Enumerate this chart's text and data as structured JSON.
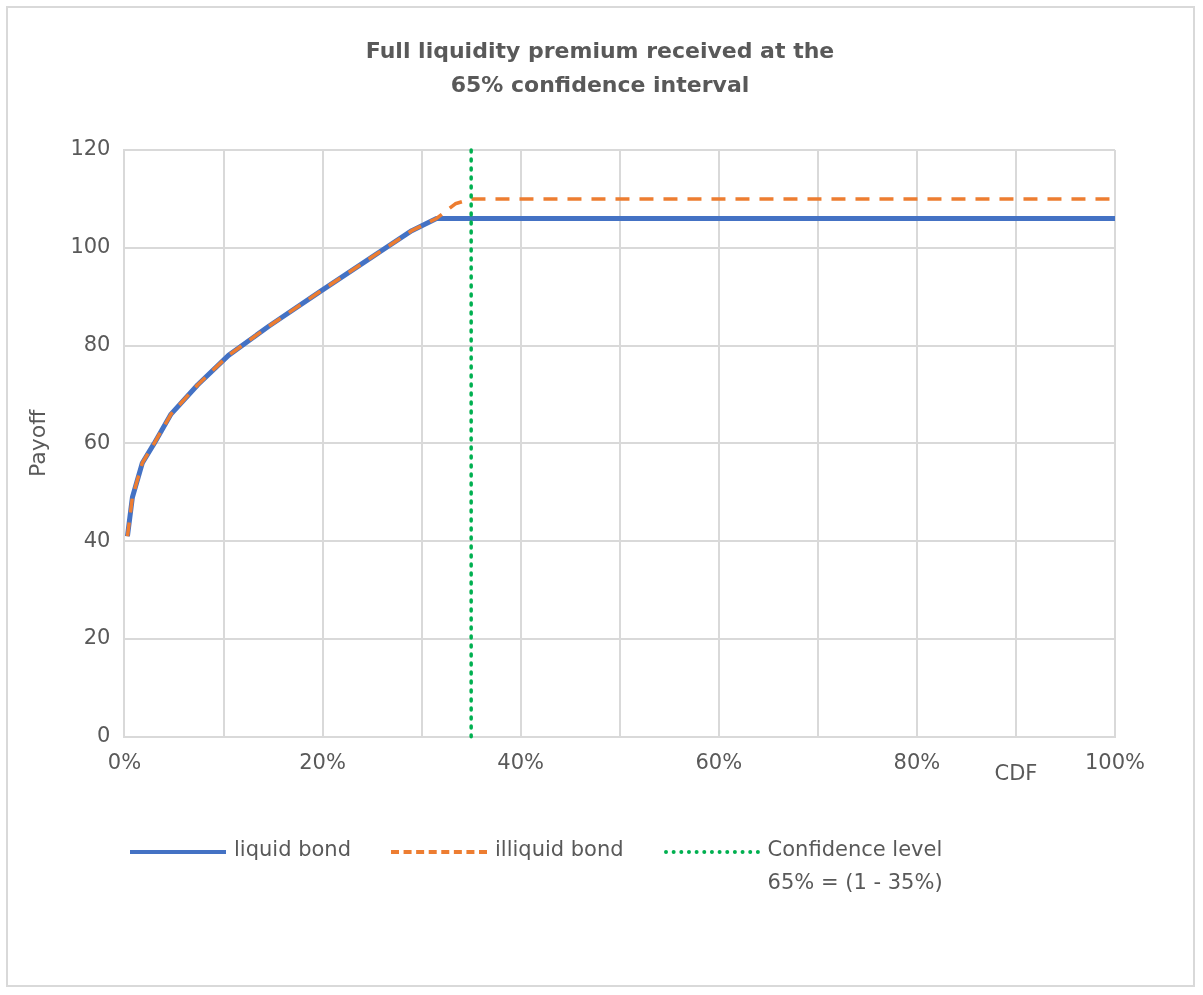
{
  "chart_data": {
    "type": "line",
    "title": "Full liquidity premium received at the 65% confidence interval",
    "xlabel": "CDF",
    "ylabel": "Payoff",
    "series": [
      {
        "name": "liquid bond",
        "color": "#4472c4",
        "line_style": "solid",
        "x": [
          0.3,
          0.8,
          1.8,
          3,
          4.7,
          7.4,
          10.5,
          14.6,
          19.7,
          24.9,
          29,
          31.5,
          100
        ],
        "values": [
          41,
          49,
          56,
          60,
          66,
          72,
          78,
          84,
          91,
          98,
          103.5,
          106,
          106
        ]
      },
      {
        "name": "illiquid bond",
        "color": "#ed7d31",
        "line_style": "dashed",
        "x": [
          0.3,
          0.8,
          1.8,
          3,
          4.7,
          7.4,
          10.5,
          14.6,
          19.7,
          24.9,
          29,
          31.5,
          33.4,
          35,
          100
        ],
        "values": [
          41,
          49,
          56,
          60,
          66,
          72,
          78,
          84,
          91,
          98,
          103.5,
          106,
          109,
          110,
          110
        ]
      }
    ],
    "ref_lines": [
      {
        "axis": "x",
        "value": 35,
        "label": "Confidence level 65% = (1 - 35%)",
        "color": "#00b050",
        "line_style": "dotted"
      }
    ],
    "xlim": [
      0,
      100
    ],
    "ylim": [
      0,
      120
    ],
    "xticks": [
      {
        "value": 0,
        "label": "0%"
      },
      {
        "value": 10,
        "label": null
      },
      {
        "value": 20,
        "label": "20%"
      },
      {
        "value": 30,
        "label": null
      },
      {
        "value": 40,
        "label": "40%"
      },
      {
        "value": 50,
        "label": null
      },
      {
        "value": 60,
        "label": "60%"
      },
      {
        "value": 70,
        "label": null
      },
      {
        "value": 80,
        "label": "80%"
      },
      {
        "value": 90,
        "label": null
      },
      {
        "value": 100,
        "label": "100%"
      }
    ],
    "yticks": [
      0,
      20,
      40,
      60,
      80,
      100,
      120
    ],
    "grid": true,
    "legend": "bottom",
    "marker": "none"
  }
}
